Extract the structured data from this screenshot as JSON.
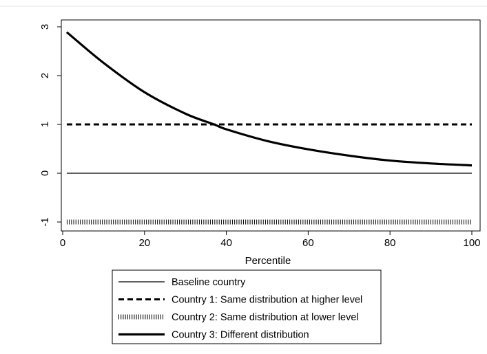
{
  "chart_data": {
    "type": "line",
    "xlabel": "Percentile",
    "ylabel": "",
    "xlim": [
      0,
      100
    ],
    "ylim": [
      -1,
      3
    ],
    "xticks": [
      0,
      20,
      40,
      60,
      80,
      100
    ],
    "yticks": [
      -1,
      0,
      1,
      2,
      3
    ],
    "grid": false,
    "legend_position": "bottom",
    "series": [
      {
        "name": "Baseline country",
        "style": "thin-solid",
        "x": [
          1,
          100
        ],
        "y": [
          0,
          0
        ]
      },
      {
        "name": "Country 1: Same distribution at higher level",
        "style": "dashed",
        "x": [
          1,
          100
        ],
        "y": [
          1,
          1
        ]
      },
      {
        "name": "Country 2: Same distribution at lower level",
        "style": "dotted",
        "x": [
          1,
          100
        ],
        "y": [
          -1,
          -1
        ]
      },
      {
        "name": "Country 3: Different distribution",
        "style": "thick-solid",
        "x": [
          1,
          10,
          20,
          30,
          37,
          40,
          50,
          60,
          70,
          80,
          90,
          100
        ],
        "y": [
          2.89,
          2.26,
          1.66,
          1.22,
          1.0,
          0.9,
          0.66,
          0.49,
          0.36,
          0.26,
          0.2,
          0.16
        ]
      }
    ]
  }
}
